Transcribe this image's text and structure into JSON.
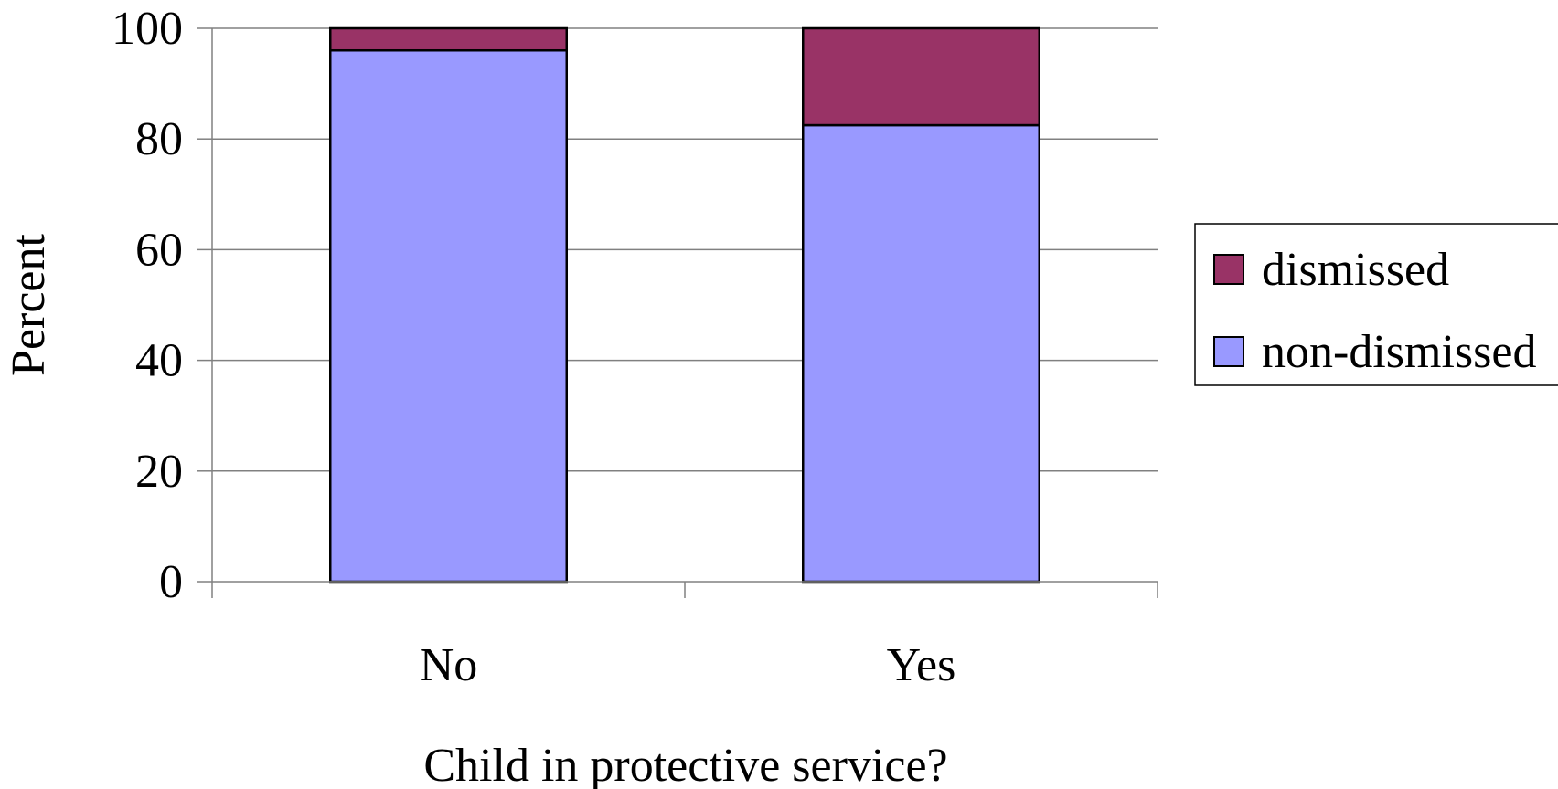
{
  "chart_data": {
    "type": "bar",
    "stacked": true,
    "categories": [
      "No",
      "Yes"
    ],
    "series": [
      {
        "name": "non-dismissed",
        "values": [
          96,
          82.5
        ],
        "color": "#9999ff"
      },
      {
        "name": "dismissed",
        "values": [
          4,
          17.5
        ],
        "color": "#993366"
      }
    ],
    "xlabel": "Child in protective service?",
    "ylabel": "Percent",
    "ylim": [
      0,
      100
    ],
    "yticks": [
      0,
      20,
      40,
      60,
      80,
      100
    ],
    "grid": true,
    "legend_position": "right",
    "legend_order": [
      "dismissed",
      "non-dismissed"
    ]
  }
}
